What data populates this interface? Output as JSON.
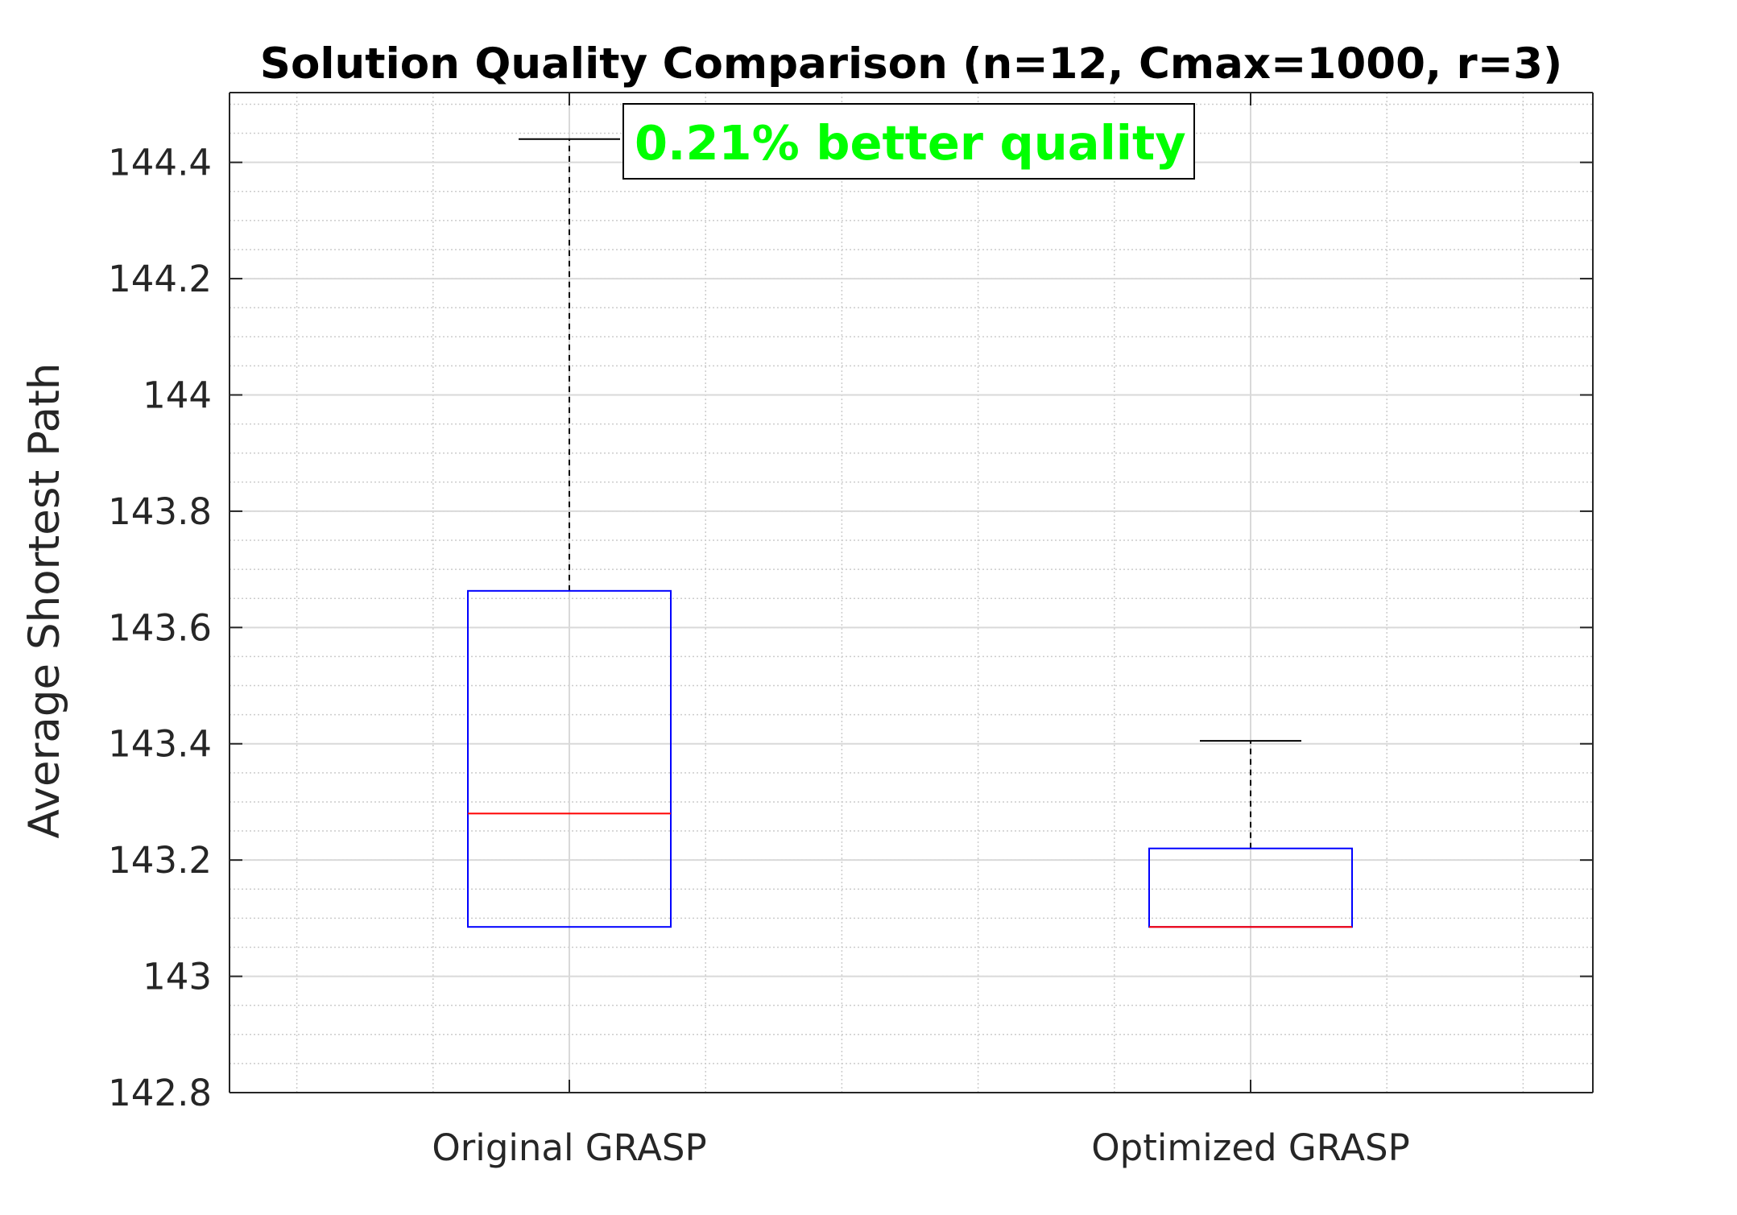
{
  "chart_data": {
    "type": "boxplot",
    "title": "Solution Quality Comparison (n=12, Cmax=1000, r=3)",
    "xlabel": "",
    "ylabel": "Average Shortest Path",
    "ylim": [
      142.8,
      144.52
    ],
    "yticks": [
      142.8,
      143,
      143.2,
      143.4,
      143.6,
      143.8,
      144,
      144.2,
      144.4
    ],
    "ytick_labels": [
      "142.8",
      "143",
      "143.2",
      "143.4",
      "143.6",
      "143.8",
      "144",
      "144.2",
      "144.4"
    ],
    "minor_ytick_step": 0.05,
    "grid": true,
    "categories": [
      "Original GRASP",
      "Optimized GRASP"
    ],
    "boxes": [
      {
        "name": "Original GRASP",
        "whisker_low": 143.085,
        "q1": 143.085,
        "median": 143.28,
        "q3": 143.663,
        "whisker_high": 144.44
      },
      {
        "name": "Optimized GRASP",
        "whisker_low": 143.085,
        "q1": 143.085,
        "median": 143.085,
        "q3": 143.22,
        "whisker_high": 143.405
      }
    ],
    "annotation": {
      "text": "0.21% better quality",
      "color": "#00ff00",
      "anchor_x_category": 0.5,
      "anchor_y": 144.4
    },
    "colors": {
      "box": "#0000ff",
      "median": "#ff0000",
      "whisker": "#000000",
      "grid": "#d9d9d9",
      "axes": "#262626"
    }
  }
}
